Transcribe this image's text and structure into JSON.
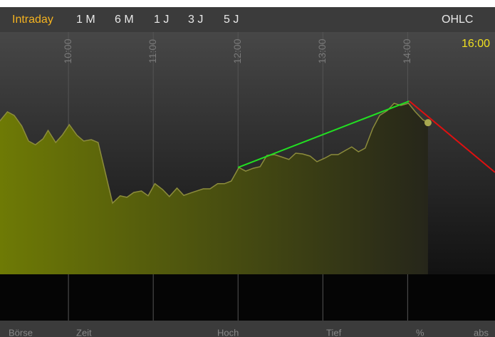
{
  "toolbar": {
    "tabs": [
      "Intraday",
      "1 M",
      "6 M",
      "1 J",
      "3 J",
      "5 J"
    ],
    "mode": "OHLC"
  },
  "chart_data": {
    "type": "area",
    "x": [
      9.19,
      9.28,
      9.36,
      9.45,
      9.53,
      9.61,
      9.7,
      9.76,
      9.85,
      9.93,
      10.01,
      10.1,
      10.18,
      10.27,
      10.35,
      10.44,
      10.52,
      10.61,
      10.69,
      10.77,
      10.86,
      10.94,
      11.02,
      11.11,
      11.19,
      11.28,
      11.36,
      11.46,
      11.59,
      11.67,
      11.76,
      11.84,
      11.92,
      12.01,
      12.09,
      12.18,
      12.26,
      12.34,
      12.43,
      12.51,
      12.6,
      12.68,
      12.76,
      12.85,
      12.93,
      13.02,
      13.1,
      13.18,
      13.27,
      13.34,
      13.42,
      13.5,
      13.59,
      13.67,
      13.76,
      13.84,
      13.92,
      14.01,
      14.09,
      14.18,
      14.24
    ],
    "values": [
      63.2,
      67.1,
      65.6,
      61.2,
      55.0,
      53.5,
      55.9,
      59.4,
      54.4,
      57.6,
      61.8,
      57.4,
      55.0,
      55.6,
      54.4,
      41.2,
      29.4,
      32.4,
      31.8,
      33.8,
      34.4,
      32.4,
      37.4,
      35.0,
      32.1,
      35.6,
      32.6,
      33.8,
      35.3,
      35.3,
      37.4,
      37.4,
      38.5,
      44.1,
      42.6,
      43.8,
      44.4,
      49.1,
      49.4,
      48.5,
      47.4,
      50.0,
      49.7,
      48.8,
      46.5,
      47.9,
      49.4,
      49.4,
      51.2,
      52.6,
      50.6,
      52.1,
      60.3,
      65.6,
      67.6,
      70.6,
      69.7,
      70.6,
      67.1,
      63.8,
      62.6
    ],
    "xlim": [
      9.193,
      15.03
    ],
    "ylim": [
      0,
      100
    ],
    "xticks": [
      {
        "value": 10,
        "label": "10:00"
      },
      {
        "value": 11,
        "label": "11:00"
      },
      {
        "value": 12,
        "label": "12:00"
      },
      {
        "value": 13,
        "label": "13:00"
      },
      {
        "value": 14,
        "label": "14:00"
      }
    ],
    "color": "#8c8c3c",
    "annotation": "16:00",
    "trendlines": [
      {
        "color": "#22e022",
        "x": [
          12.0,
          14.02
        ],
        "values": [
          44.1,
          71.5
        ]
      },
      {
        "color": "#e01010",
        "x": [
          14.02,
          15.03
        ],
        "values": [
          71.5,
          42.1
        ]
      }
    ]
  },
  "footer": [
    "Börse",
    "Zeit",
    "Hoch",
    "Tief",
    "%",
    "abs"
  ]
}
